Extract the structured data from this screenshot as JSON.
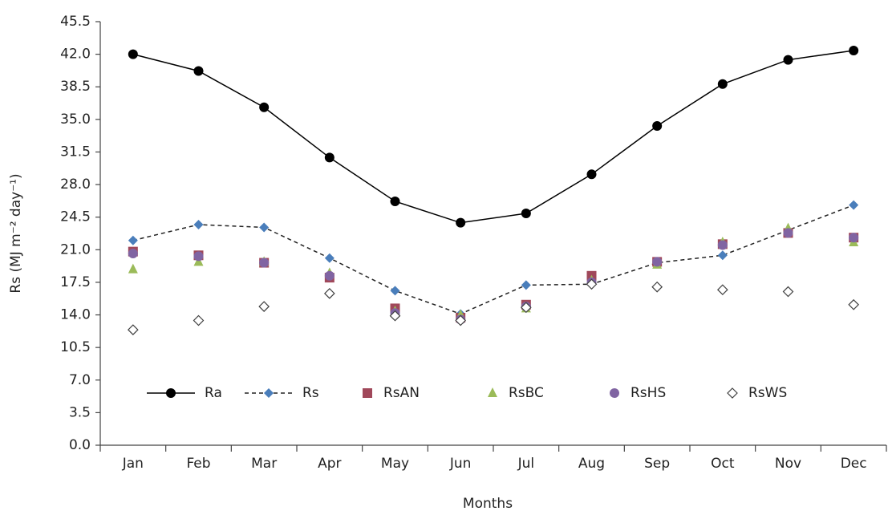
{
  "chart_data": {
    "type": "line",
    "x_label": "Months",
    "y_label": "Rs (MJ m⁻² day⁻¹)",
    "categories": [
      "Jan",
      "Feb",
      "Mar",
      "Apr",
      "May",
      "Jun",
      "Jul",
      "Aug",
      "Sep",
      "Oct",
      "Nov",
      "Dec"
    ],
    "ylim": [
      0,
      45.5
    ],
    "yticks": [
      {
        "value": 0,
        "label": "0.0"
      },
      3.5,
      {
        "value": 7,
        "label": "7.0"
      },
      10.5,
      {
        "value": 14,
        "label": "14.0"
      },
      17.5,
      {
        "value": 21,
        "label": "21.0"
      },
      24.5,
      {
        "value": 28,
        "label": "28.0"
      },
      31.5,
      {
        "value": 35,
        "label": "35.0"
      },
      38.5,
      {
        "value": 42,
        "label": "42.0"
      },
      45.5
    ],
    "grid": false,
    "legend": "inside-bottom",
    "series": [
      {
        "name": "Ra",
        "color": "#000000",
        "line_style": "solid",
        "marker": "circle",
        "values": [
          42.0,
          40.2,
          36.3,
          30.9,
          26.2,
          23.9,
          24.9,
          29.1,
          34.3,
          38.8,
          41.4,
          42.4
        ]
      },
      {
        "name": "Rs",
        "color": "#4a7ebb",
        "line_style": "dashed",
        "marker": "diamond",
        "values": [
          22.0,
          23.7,
          23.4,
          20.1,
          16.6,
          14.1,
          17.2,
          17.3,
          19.6,
          20.4,
          23.1,
          25.8
        ]
      },
      {
        "name": "RsAN",
        "color": "#a0485a",
        "line_style": "none",
        "marker": "square",
        "values": [
          20.8,
          20.4,
          19.6,
          18.0,
          14.7,
          13.7,
          15.1,
          18.2,
          19.7,
          21.6,
          22.8,
          22.3
        ]
      },
      {
        "name": "RsBC",
        "color": "#9bbb59",
        "line_style": "none",
        "marker": "triangle",
        "values": [
          18.9,
          19.7,
          19.7,
          18.5,
          14.4,
          14.0,
          14.7,
          17.7,
          19.4,
          21.8,
          23.3,
          21.8
        ]
      },
      {
        "name": "RsHS",
        "color": "#8064a2",
        "line_style": "none",
        "marker": "circle",
        "values": [
          20.6,
          20.3,
          19.6,
          18.2,
          14.2,
          13.5,
          14.9,
          17.5,
          19.7,
          21.5,
          22.8,
          22.3
        ]
      },
      {
        "name": "RsWS",
        "color": "#404040",
        "line_style": "none",
        "marker": "open-diamond",
        "values": [
          12.4,
          13.4,
          14.9,
          16.3,
          13.9,
          13.4,
          14.8,
          17.3,
          17.0,
          16.7,
          16.5,
          15.1
        ]
      }
    ]
  }
}
